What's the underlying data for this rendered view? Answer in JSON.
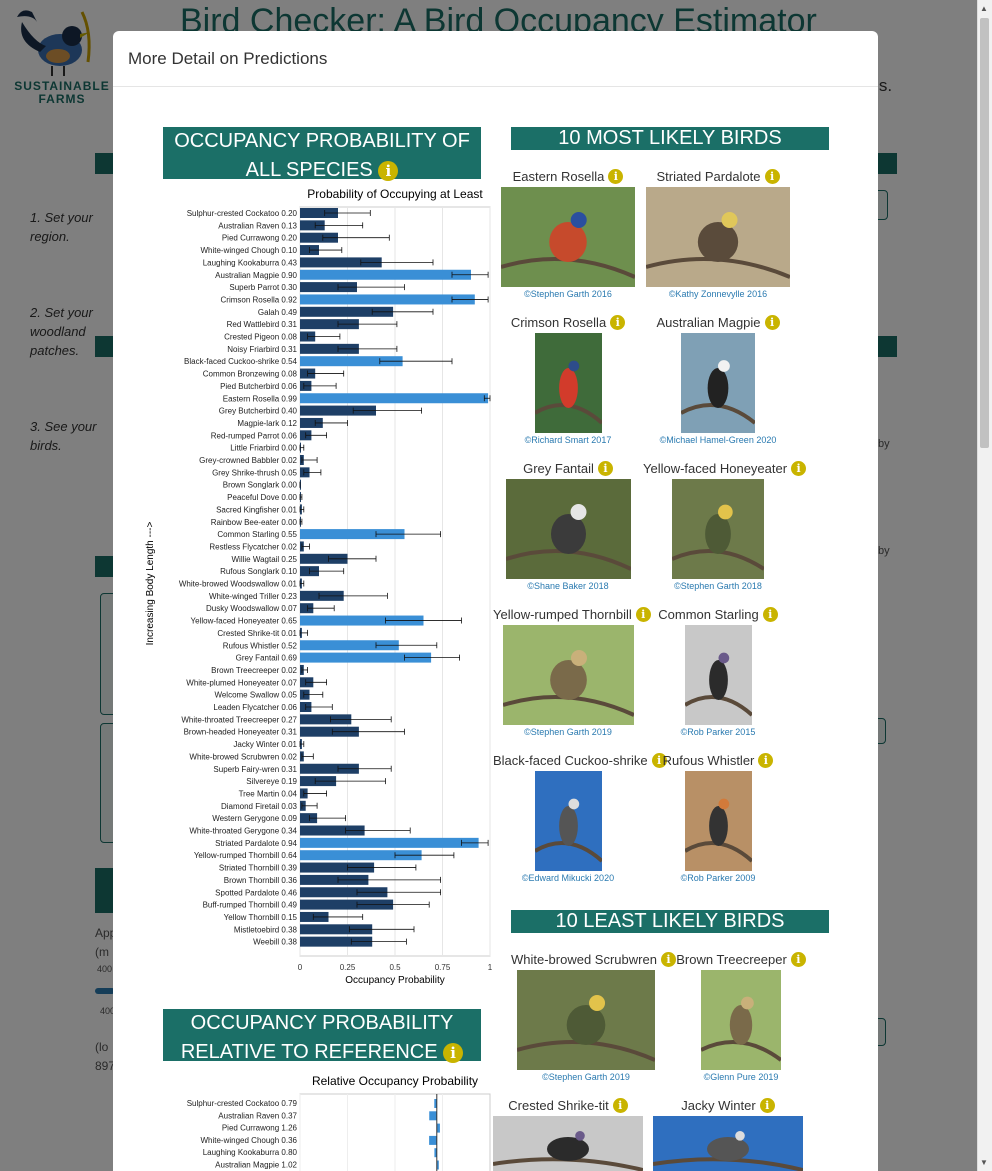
{
  "background": {
    "app_title": "Bird Checker: A Bird Occupancy Estimator",
    "logo_text": "SUSTAINABLE FARMS",
    "subtitle_fragment": "ngs.",
    "steps": [
      "1. Set your region.",
      "2. Set your woodland patches.",
      "3. See your birds."
    ],
    "fragments": [
      "App",
      "(m",
      "400",
      "400",
      "(lo",
      "897",
      "by",
      "by"
    ]
  },
  "modal": {
    "title": "More Detail on Predictions",
    "all_species_heading": "OCCUPANCY PROBABILITY OF ALL SPECIES",
    "relative_heading": "OCCUPANCY PROBABILITY RELATIVE TO REFERENCE",
    "most_likely_heading": "10 MOST LIKELY BIRDS",
    "least_likely_heading": "10 LEAST LIKELY BIRDS",
    "most_likely": [
      {
        "name": "Eastern Rosella",
        "credit": "©Stephen Garth 2016"
      },
      {
        "name": "Striated Pardalote",
        "credit": "©Kathy Zonnevylle 2016"
      },
      {
        "name": "Crimson Rosella",
        "credit": "©Richard Smart 2017"
      },
      {
        "name": "Australian Magpie",
        "credit": "©Michael Hamel-Green 2020"
      },
      {
        "name": "Grey Fantail",
        "credit": "©Shane Baker 2018"
      },
      {
        "name": "Yellow-faced Honeyeater",
        "credit": "©Stephen Garth 2018"
      },
      {
        "name": "Yellow-rumped Thornbill",
        "credit": "©Stephen Garth 2019"
      },
      {
        "name": "Common Starling",
        "credit": "©Rob Parker 2015"
      },
      {
        "name": "Black-faced Cuckoo-shrike",
        "credit": "©Edward Mikucki 2020"
      },
      {
        "name": "Rufous Whistler",
        "credit": "©Rob Parker 2009"
      }
    ],
    "least_likely": [
      {
        "name": "White-browed Scrubwren",
        "credit": "©Stephen Garth 2019"
      },
      {
        "name": "Brown Treecreeper",
        "credit": "©Glenn Pure 2019"
      },
      {
        "name": "Crested Shrike-tit",
        "credit": ""
      },
      {
        "name": "Jacky Winter",
        "credit": ""
      }
    ]
  },
  "chart_data": [
    {
      "type": "bar",
      "orientation": "horizontal",
      "title": "Probability of Occupying at Least",
      "xlabel": "Occupancy Probability",
      "ylabel": "Increasing Body Length --->",
      "xlim": [
        0,
        1
      ],
      "xticks": [
        "0",
        "0.25",
        "0.5",
        "0.75",
        "1"
      ],
      "highlight_color": "#3a8fd6",
      "base_color": "#1e3f66",
      "categories": [
        "Sulphur-crested Cockatoo",
        "Australian Raven",
        "Pied Currawong",
        "White-winged Chough",
        "Laughing Kookaburra",
        "Australian Magpie",
        "Superb Parrot",
        "Crimson Rosella",
        "Galah",
        "Red Wattlebird",
        "Crested Pigeon",
        "Noisy Friarbird",
        "Black-faced Cuckoo-shrike",
        "Common Bronzewing",
        "Pied Butcherbird",
        "Eastern Rosella",
        "Grey Butcherbird",
        "Magpie-lark",
        "Red-rumped Parrot",
        "Little Friarbird",
        "Grey-crowned Babbler",
        "Grey Shrike-thrush",
        "Brown Songlark",
        "Peaceful Dove",
        "Sacred Kingfisher",
        "Rainbow Bee-eater",
        "Common Starling",
        "Restless Flycatcher",
        "Willie Wagtail",
        "Rufous Songlark",
        "White-browed Woodswallow",
        "White-winged Triller",
        "Dusky Woodswallow",
        "Yellow-faced Honeyeater",
        "Crested Shrike-tit",
        "Rufous Whistler",
        "Grey Fantail",
        "Brown Treecreeper",
        "White-plumed Honeyeater",
        "Welcome Swallow",
        "Leaden Flycatcher",
        "White-throated Treecreeper",
        "Brown-headed Honeyeater",
        "Jacky Winter",
        "White-browed Scrubwren",
        "Superb Fairy-wren",
        "Silvereye",
        "Tree Martin",
        "Diamond Firetail",
        "Western Gerygone",
        "White-throated Gerygone",
        "Striated Pardalote",
        "Yellow-rumped Thornbill",
        "Striated Thornbill",
        "Brown Thornbill",
        "Spotted Pardalote",
        "Buff-rumped Thornbill",
        "Yellow Thornbill",
        "Mistletoebird",
        "Weebill"
      ],
      "values": [
        0.2,
        0.13,
        0.2,
        0.1,
        0.43,
        0.9,
        0.3,
        0.92,
        0.49,
        0.31,
        0.08,
        0.31,
        0.54,
        0.08,
        0.06,
        0.99,
        0.4,
        0.12,
        0.06,
        0.0,
        0.02,
        0.05,
        0.0,
        0.0,
        0.01,
        0.0,
        0.55,
        0.02,
        0.25,
        0.1,
        0.01,
        0.23,
        0.07,
        0.65,
        0.01,
        0.52,
        0.69,
        0.02,
        0.07,
        0.05,
        0.06,
        0.27,
        0.31,
        0.01,
        0.02,
        0.31,
        0.19,
        0.04,
        0.03,
        0.09,
        0.34,
        0.94,
        0.64,
        0.39,
        0.36,
        0.46,
        0.49,
        0.15,
        0.38,
        0.38
      ],
      "value_labels": [
        "0.20",
        "0.13",
        "0.20",
        "0.10",
        "0.43",
        "0.90",
        "0.30",
        "0.92",
        "0.49",
        "0.31",
        "0.08",
        "0.31",
        "0.54",
        "0.08",
        "0.06",
        "0.99",
        "0.40",
        "0.12",
        "0.06",
        "0.00",
        "0.02",
        "0.05",
        "0.00",
        "0.00",
        "0.01",
        "0.00",
        "0.55",
        "0.02",
        "0.25",
        "0.10",
        "0.01",
        "0.23",
        "0.07",
        "0.65",
        "0.01",
        "0.52",
        "0.69",
        "0.02",
        "0.07",
        "0.05",
        "0.06",
        "0.27",
        "0.31",
        "0.01",
        "0.02",
        "0.31",
        "0.19",
        "0.04",
        "0.03",
        "0.09",
        "0.34",
        "0.94",
        "0.64",
        "0.39",
        "0.36",
        "0.46",
        "0.49",
        "0.15",
        "0.38",
        "0.38"
      ],
      "lower": [
        0.13,
        0.08,
        0.12,
        0.05,
        0.32,
        0.8,
        0.2,
        0.8,
        0.38,
        0.2,
        0.04,
        0.2,
        0.42,
        0.04,
        0.02,
        0.97,
        0.28,
        0.08,
        0.03,
        0.0,
        0.01,
        0.02,
        0.0,
        0.0,
        0.0,
        0.0,
        0.4,
        0.01,
        0.15,
        0.05,
        0.0,
        0.1,
        0.04,
        0.45,
        0.0,
        0.4,
        0.55,
        0.01,
        0.03,
        0.02,
        0.03,
        0.16,
        0.17,
        0.0,
        0.01,
        0.2,
        0.08,
        0.02,
        0.01,
        0.05,
        0.24,
        0.85,
        0.5,
        0.25,
        0.2,
        0.3,
        0.3,
        0.07,
        0.26,
        0.27
      ],
      "upper": [
        0.37,
        0.33,
        0.47,
        0.22,
        0.7,
        0.99,
        0.55,
        0.99,
        0.7,
        0.51,
        0.21,
        0.51,
        0.8,
        0.23,
        0.19,
        1.0,
        0.64,
        0.25,
        0.14,
        0.02,
        0.09,
        0.11,
        0.0,
        0.01,
        0.02,
        0.01,
        0.74,
        0.05,
        0.4,
        0.23,
        0.02,
        0.46,
        0.18,
        0.85,
        0.04,
        0.72,
        0.84,
        0.04,
        0.14,
        0.12,
        0.17,
        0.48,
        0.55,
        0.02,
        0.07,
        0.48,
        0.45,
        0.14,
        0.09,
        0.24,
        0.58,
        0.99,
        0.81,
        0.61,
        0.74,
        0.74,
        0.68,
        0.33,
        0.6,
        0.56
      ],
      "highlighted": [
        "Australian Magpie",
        "Crimson Rosella",
        "Eastern Rosella",
        "Common Starling",
        "Black-faced Cuckoo-shrike",
        "Yellow-faced Honeyeater",
        "Rufous Whistler",
        "Grey Fantail",
        "Striated Pardalote",
        "Yellow-rumped Thornbill"
      ]
    },
    {
      "type": "bar",
      "orientation": "horizontal",
      "title": "Relative Occupancy Probability",
      "categories": [
        "Sulphur-crested Cockatoo",
        "Australian Raven",
        "Pied Currawong",
        "White-winged Chough",
        "Laughing Kookaburra",
        "Australian Magpie"
      ],
      "values": [
        0.79,
        0.37,
        1.26,
        0.36,
        0.8,
        1.02
      ],
      "value_labels": [
        "0.79",
        "0.37",
        "1.26",
        "0.36",
        "0.80",
        "1.02"
      ],
      "reference": 1
    }
  ]
}
